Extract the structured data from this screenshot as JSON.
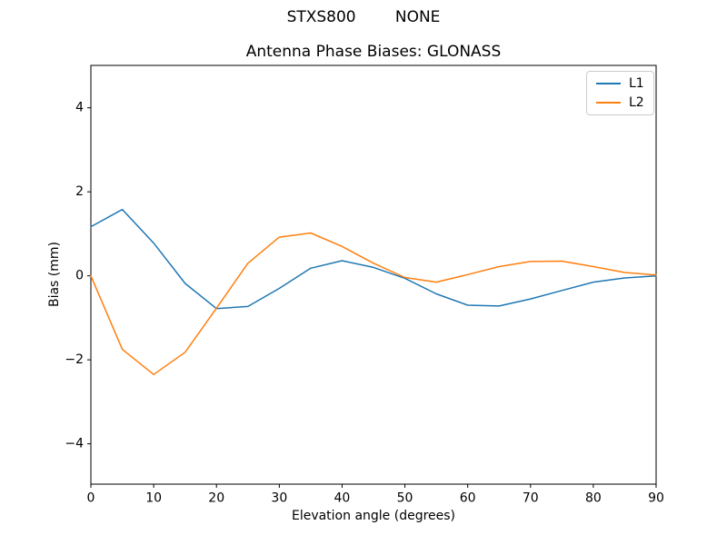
{
  "figure": {
    "suptitle": "STXS800        NONE",
    "background": "#ffffff"
  },
  "chart_data": {
    "type": "line",
    "title": "Antenna Phase Biases: GLONASS",
    "xlabel": "Elevation angle (degrees)",
    "ylabel": "Bias (mm)",
    "xlim": [
      0,
      90
    ],
    "ylim": [
      -4.96,
      5.01
    ],
    "xticks": [
      0,
      10,
      20,
      30,
      40,
      50,
      60,
      70,
      80,
      90
    ],
    "yticks": [
      -4,
      -2,
      0,
      2,
      4
    ],
    "grid": false,
    "axis_color": "#000000",
    "legend": {
      "position": "upper right",
      "entries": [
        "L1",
        "L2"
      ],
      "border_color": "#cccccc"
    },
    "x": [
      0,
      5,
      10,
      15,
      20,
      25,
      30,
      35,
      40,
      45,
      50,
      55,
      60,
      65,
      70,
      75,
      80,
      85,
      90
    ],
    "series": [
      {
        "name": "L1",
        "color": "#1f77b4",
        "values": [
          1.17,
          1.58,
          0.78,
          -0.18,
          -0.78,
          -0.73,
          -0.3,
          0.18,
          0.36,
          0.2,
          -0.06,
          -0.43,
          -0.7,
          -0.72,
          -0.55,
          -0.35,
          -0.15,
          -0.05,
          0.0
        ]
      },
      {
        "name": "L2",
        "color": "#ff7f0e",
        "values": [
          0.0,
          -1.75,
          -2.35,
          -1.82,
          -0.77,
          0.3,
          0.92,
          1.02,
          0.7,
          0.3,
          -0.04,
          -0.15,
          0.03,
          0.22,
          0.34,
          0.35,
          0.22,
          0.08,
          0.02
        ]
      }
    ]
  }
}
